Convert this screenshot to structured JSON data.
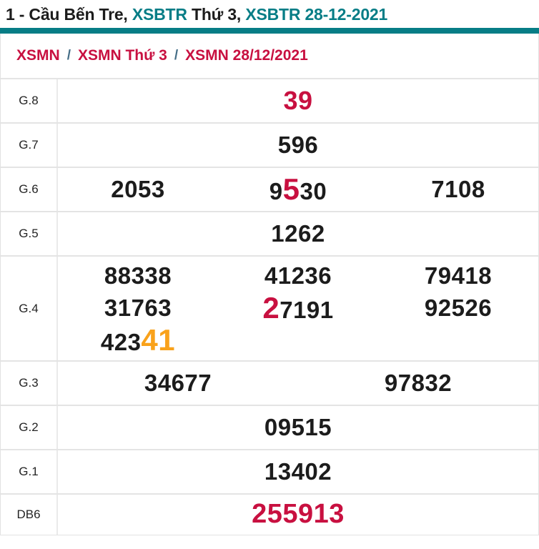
{
  "header": {
    "title_segments": [
      {
        "text": "1 - Cầu Bến Tre, ",
        "color": "dark"
      },
      {
        "text": "XSBTR ",
        "color": "teal"
      },
      {
        "text": "Thứ 3, ",
        "color": "dark"
      },
      {
        "text": "XSBTR 28-12-2021",
        "color": "teal"
      }
    ]
  },
  "breadcrumb": {
    "separator": "/",
    "items": [
      {
        "label": "XSMN"
      },
      {
        "label": "XSMN Thứ 3"
      },
      {
        "label": "XSMN 28/12/2021"
      }
    ]
  },
  "results": {
    "rows": [
      {
        "label": "G.8",
        "cells": [
          [
            {
              "text": "39",
              "color": "red"
            }
          ]
        ]
      },
      {
        "label": "G.7",
        "cells": [
          [
            {
              "text": "596"
            }
          ]
        ]
      },
      {
        "label": "G.6",
        "cells": [
          [
            {
              "text": "2053"
            }
          ],
          [
            {
              "text": "9"
            },
            {
              "text": "5",
              "color": "red",
              "emphasis": true
            },
            {
              "text": "30"
            }
          ],
          [
            {
              "text": "7108"
            }
          ]
        ]
      },
      {
        "label": "G.5",
        "cells": [
          [
            {
              "text": "1262"
            }
          ]
        ]
      },
      {
        "label": "G.4",
        "lines": [
          [
            [
              {
                "text": "88338"
              }
            ],
            [
              {
                "text": "41236"
              }
            ],
            [
              {
                "text": "79418"
              }
            ]
          ],
          [
            [
              {
                "text": "31763"
              }
            ],
            [
              {
                "text": "2",
                "color": "red",
                "emphasis": true
              },
              {
                "text": "7191"
              }
            ],
            [
              {
                "text": "92526"
              }
            ]
          ],
          [
            [
              {
                "text": "423"
              },
              {
                "text": "41",
                "color": "orange",
                "emphasis": true
              }
            ],
            [],
            []
          ]
        ]
      },
      {
        "label": "G.3",
        "cells": [
          [
            {
              "text": "34677"
            }
          ],
          [
            {
              "text": "97832"
            }
          ]
        ]
      },
      {
        "label": "G.2",
        "cells": [
          [
            {
              "text": "09515"
            }
          ]
        ]
      },
      {
        "label": "G.1",
        "cells": [
          [
            {
              "text": "13402"
            }
          ]
        ]
      },
      {
        "label": "DB6",
        "cells": [
          [
            {
              "text": "255913",
              "color": "red"
            }
          ]
        ]
      }
    ]
  },
  "colors": {
    "teal_accent": "#077d86",
    "highlight_red": "#c81040",
    "highlight_orange": "#f9a21b",
    "text_dark": "#1c1c1c",
    "separator_slash": "#456e87",
    "row_border": "#e4e4e4"
  }
}
